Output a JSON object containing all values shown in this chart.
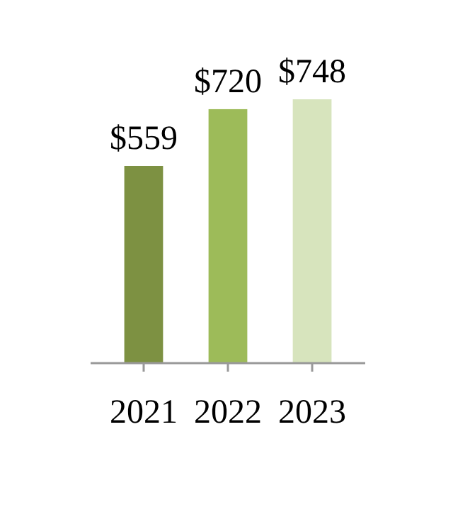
{
  "chart_data": {
    "type": "bar",
    "categories": [
      "2021",
      "2022",
      "2023"
    ],
    "values": [
      559,
      720,
      748
    ],
    "colors": [
      "#7d9142",
      "#9dbb59",
      "#d7e4bd"
    ],
    "value_labels": [
      "$559",
      "$720",
      "$748"
    ]
  }
}
